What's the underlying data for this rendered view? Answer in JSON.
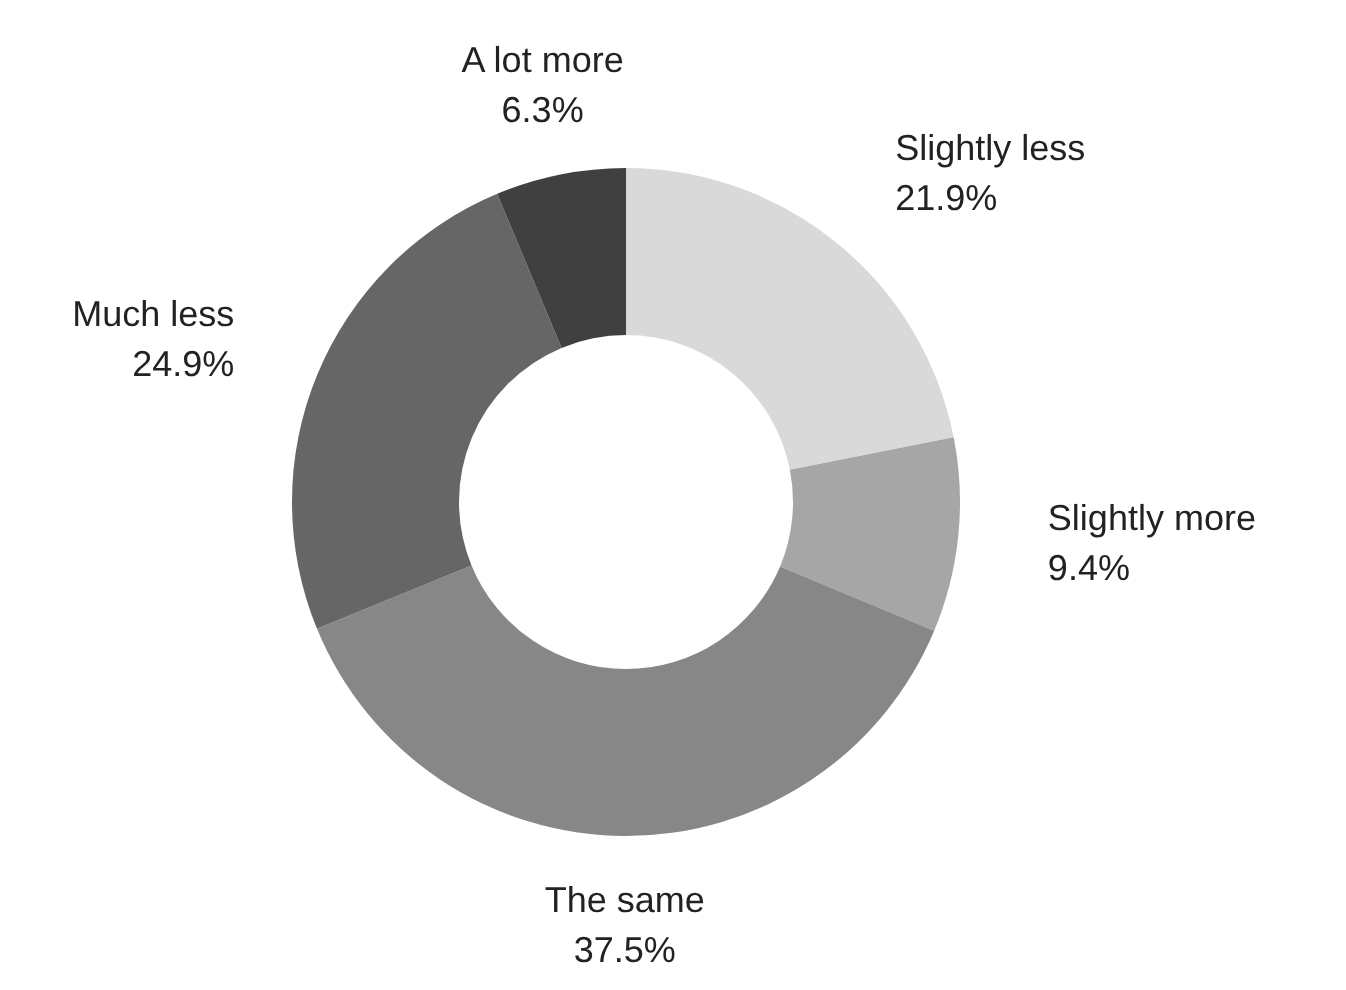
{
  "chart_data": {
    "type": "donut",
    "categories": [
      "Slightly less",
      "Slightly more",
      "The same",
      "Much less",
      "A lot more"
    ],
    "values": [
      21.9,
      9.4,
      37.5,
      24.9,
      6.3
    ],
    "value_labels": [
      "21.9%",
      "9.4%",
      "37.5%",
      "24.9%",
      "6.3%"
    ],
    "colors": [
      "#d9d9d9",
      "#a6a6a6",
      "#878787",
      "#666666",
      "#404040"
    ]
  }
}
